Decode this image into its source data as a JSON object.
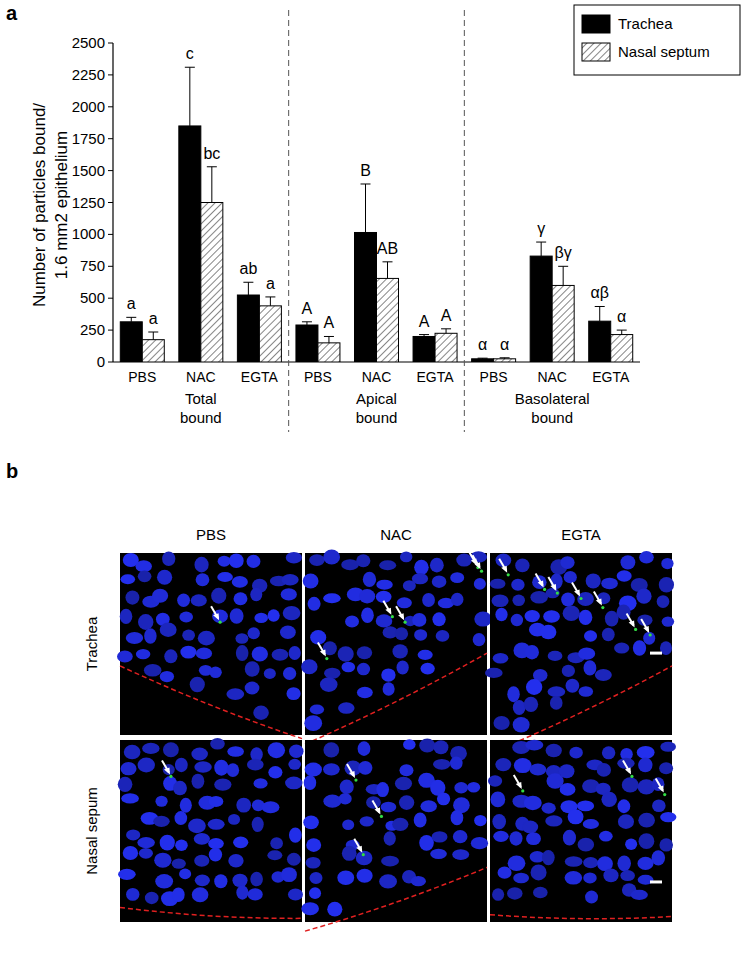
{
  "panel_labels": [
    "a",
    "b"
  ],
  "chart_data": {
    "type": "bar",
    "ylabel": "Number of particles bound/ 1.6 mm2 epithelium",
    "categories": [
      "PBS",
      "NAC",
      "EGTA",
      "PBS",
      "NAC",
      "EGTA",
      "PBS",
      "NAC",
      "EGTA"
    ],
    "groups": [
      "Total bound",
      "Apical bound",
      "Basolateral bound"
    ],
    "series": [
      {
        "name": "Trachea",
        "color": "#000000",
        "values": [
          315,
          1850,
          525,
          290,
          1015,
          200,
          25,
          830,
          320
        ],
        "errors": [
          35,
          460,
          100,
          25,
          380,
          15,
          5,
          110,
          115
        ],
        "letters": [
          "a",
          "c",
          "ab",
          "A",
          "B",
          "A",
          "α",
          "γ",
          "αβ"
        ]
      },
      {
        "name": "Nasal septum",
        "color": "#ffffff",
        "values": [
          175,
          1250,
          440,
          150,
          655,
          225,
          25,
          600,
          215
        ],
        "errors": [
          60,
          280,
          70,
          50,
          130,
          35,
          8,
          150,
          35
        ],
        "letters": [
          "a",
          "bc",
          "a",
          "A",
          "AB",
          "A",
          "α",
          "βγ",
          "α"
        ]
      }
    ],
    "ylim": [
      0,
      2500
    ],
    "yticks": [
      0,
      250,
      500,
      750,
      1000,
      1250,
      1500,
      1750,
      2000,
      2250,
      2500
    ],
    "grid": false,
    "legend": "top-right"
  },
  "panel_b": {
    "columns": [
      "PBS",
      "NAC",
      "EGTA"
    ],
    "rows": [
      "Trachea",
      "Nasal sepum"
    ]
  }
}
